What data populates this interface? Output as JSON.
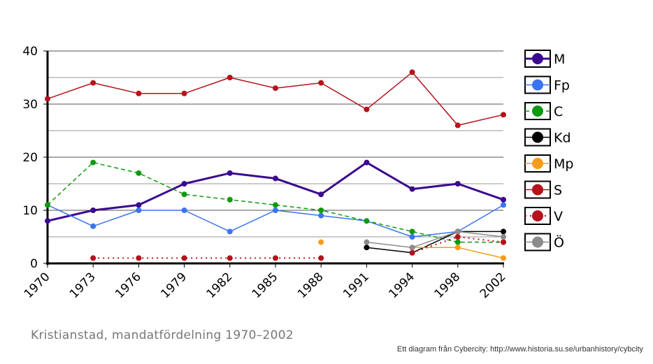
{
  "chart_data": {
    "type": "line",
    "caption": "Kristianstad, mandatfördelning 1970–2002",
    "credit": "Ett diagram från Cybercity: http://www.historia.su.se/urbanhistory/cybcity",
    "categories": [
      "1970",
      "1973",
      "1976",
      "1979",
      "1982",
      "1985",
      "1988",
      "1991",
      "1994",
      "1998",
      "2002"
    ],
    "ylim": [
      0,
      40
    ],
    "yticks": [
      0,
      10,
      20,
      30,
      40
    ],
    "grid": true,
    "legend_position": "right",
    "series": [
      {
        "name": "M",
        "color": "#3a0a8f",
        "dash": "solid",
        "width": 3,
        "values": [
          8,
          10,
          11,
          15,
          17,
          16,
          13,
          19,
          14,
          15,
          12
        ]
      },
      {
        "name": "Fp",
        "color": "#3b74ef",
        "dash": "solid",
        "width": 1.5,
        "values": [
          11,
          7,
          10,
          10,
          6,
          10,
          9,
          8,
          5,
          6,
          11
        ]
      },
      {
        "name": "C",
        "color": "#0f9a10",
        "dash": "dashed",
        "width": 1.5,
        "values": [
          11,
          19,
          17,
          13,
          12,
          11,
          10,
          8,
          6,
          4,
          4
        ]
      },
      {
        "name": "Kd",
        "color": "#000000",
        "dash": "solid",
        "width": 1.5,
        "values": [
          null,
          null,
          null,
          null,
          null,
          null,
          null,
          3,
          2,
          6,
          6
        ]
      },
      {
        "name": "Mp",
        "color": "#f59c1a",
        "dash": "solid",
        "width": 1.5,
        "values": [
          null,
          null,
          null,
          null,
          null,
          null,
          4,
          null,
          3,
          3,
          1
        ]
      },
      {
        "name": "S",
        "color": "#b5121b",
        "dash": "solid",
        "width": 1.5,
        "values": [
          31,
          34,
          32,
          32,
          35,
          33,
          34,
          29,
          36,
          26,
          28
        ]
      },
      {
        "name": "V",
        "color": "#b5121b",
        "dash": "dotted",
        "width": 2,
        "values": [
          null,
          1,
          1,
          1,
          1,
          1,
          1,
          null,
          2,
          5,
          4
        ]
      },
      {
        "name": "Ö",
        "color": "#8c8c8c",
        "dash": "solid",
        "width": 1.5,
        "values": [
          null,
          null,
          null,
          null,
          null,
          null,
          null,
          4,
          3,
          6,
          5
        ]
      }
    ]
  }
}
